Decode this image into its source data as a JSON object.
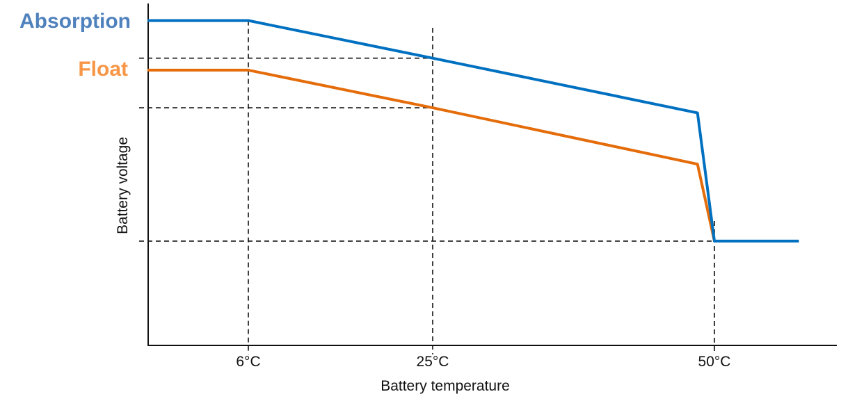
{
  "chart_data": {
    "type": "line",
    "title": "",
    "xlabel": "Battery temperature",
    "ylabel": "Battery voltage",
    "x_unit": "°C",
    "xticks": [
      {
        "value": 6,
        "label": "6°C"
      },
      {
        "value": 25,
        "label": "25°C"
      },
      {
        "value": 50,
        "label": "50°C"
      }
    ],
    "y_scale_note_visible": false,
    "ylim": [
      0,
      100
    ],
    "grid": false,
    "legend": "left labels",
    "series": [
      {
        "name": "Absorption",
        "color": "#0070c0",
        "label_color": "#4f81bd",
        "points": [
          [
            -4.4,
            95
          ],
          [
            6,
            95
          ],
          [
            25,
            84
          ],
          [
            48.5,
            68
          ],
          [
            50,
            30.5
          ],
          [
            57.5,
            30.5
          ]
        ]
      },
      {
        "name": "Float",
        "color": "#e46c0a",
        "label_color": "#f79646",
        "points": [
          [
            -4.4,
            80.5
          ],
          [
            6,
            80.5
          ],
          [
            25,
            69.5
          ],
          [
            48.5,
            53
          ],
          [
            50,
            30.5
          ]
        ]
      }
    ],
    "reference_lines": {
      "horizontal": [
        84,
        69.5,
        30.5
      ],
      "vertical": [
        6,
        25,
        50
      ]
    }
  }
}
